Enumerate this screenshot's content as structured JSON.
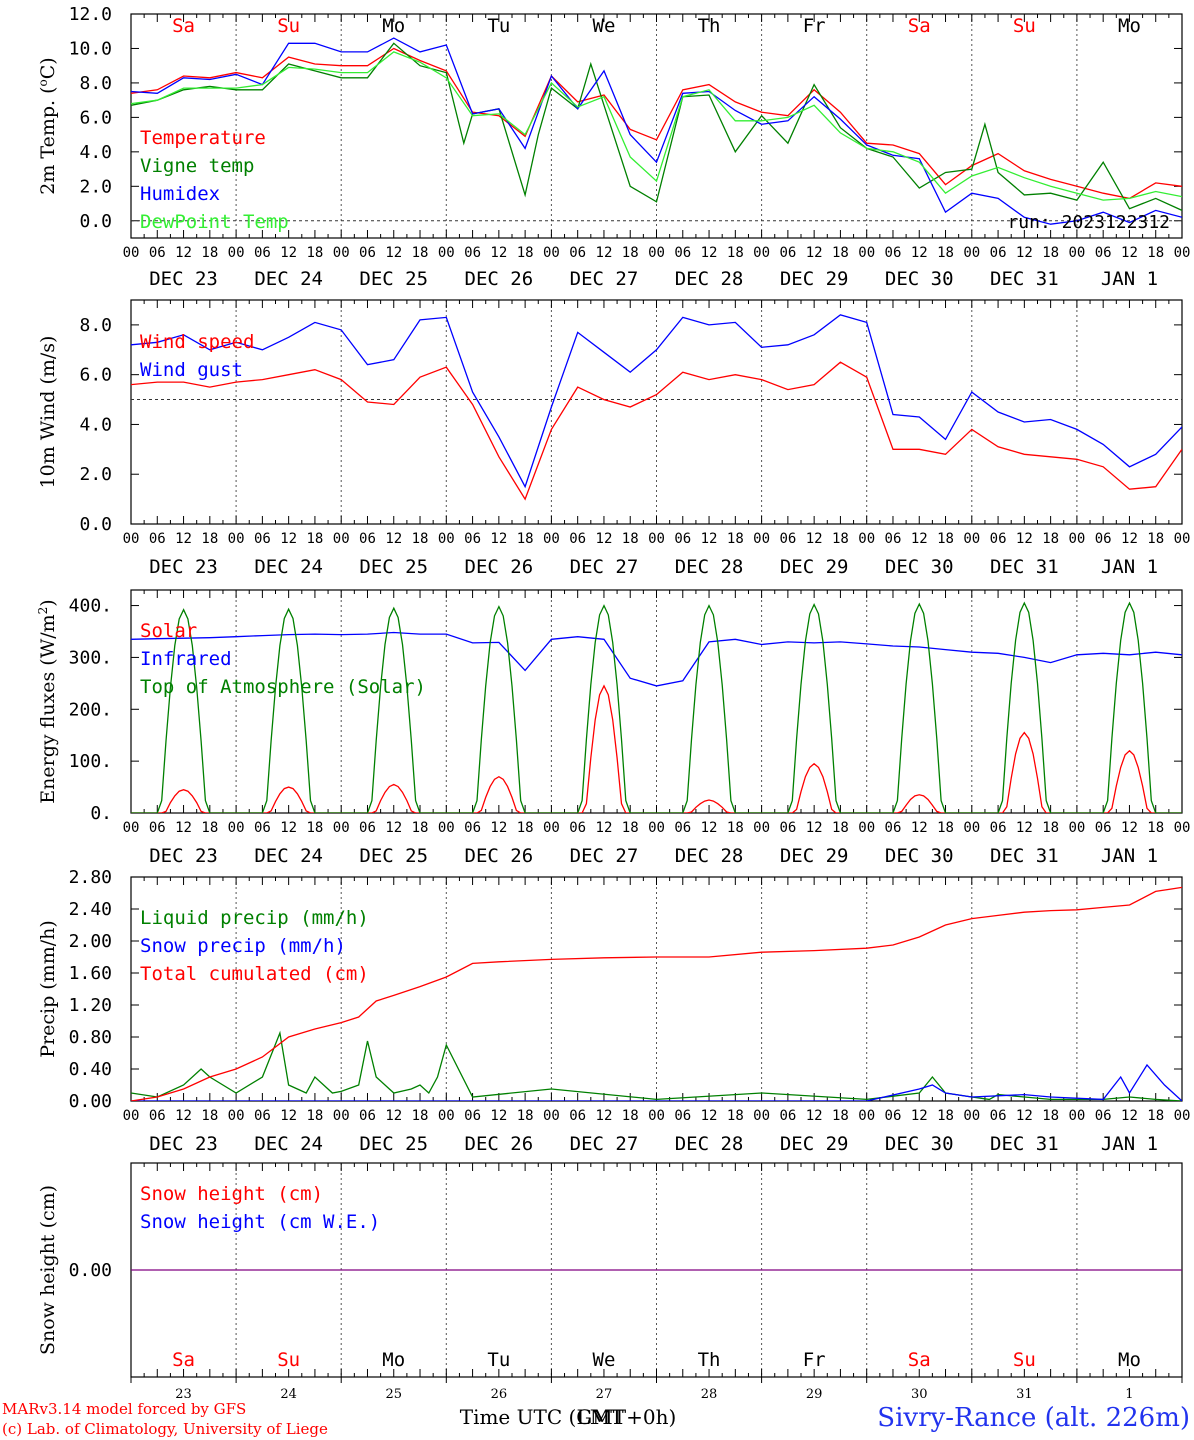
{
  "footer": {
    "model_line": "MARv3.14 model forced by GFS",
    "lab_line": "(c) Lab. of Climatology, University of Liege",
    "time_axis_title": "Time UTC (GMT+0h)",
    "time_axis_overlay": "LMT",
    "station": "Sivry-Rance (alt. 226m)"
  },
  "colors": {
    "red": "#ff0000",
    "green": "#008000",
    "blue": "#0000ff",
    "lightgreen": "#33ee33",
    "purple": "#800080"
  },
  "days": {
    "weekday_labels": [
      "Sa",
      "Su",
      "Mo",
      "Tu",
      "We",
      "Th",
      "Fr",
      "Sa",
      "Su",
      "Mo"
    ],
    "weekend_flags": [
      true,
      true,
      false,
      false,
      false,
      false,
      false,
      true,
      true,
      false
    ],
    "date_labels": [
      "DEC 23",
      "DEC 24",
      "DEC 25",
      "DEC 26",
      "DEC 27",
      "DEC 28",
      "DEC 29",
      "DEC 30",
      "DEC 31",
      "JAN  1"
    ],
    "day_numbers": [
      "23",
      "24",
      "25",
      "26",
      "27",
      "28",
      "29",
      "30",
      "31",
      "1"
    ],
    "hour_ticks": [
      "00",
      "06",
      "12",
      "18"
    ],
    "final_tick": "00"
  },
  "chart_data": [
    {
      "id": "temp",
      "type": "line",
      "ylabel": "2m Temp. (oC)",
      "ylim": [
        -1,
        12
      ],
      "yticks": [
        "0.0",
        "2.0",
        "4.0",
        "6.0",
        "8.0",
        "10.0",
        "12.0"
      ],
      "ytick_values": [
        0,
        2,
        4,
        6,
        8,
        10,
        12
      ],
      "hline": 0,
      "run_label": "run: 2023122312",
      "legend": [
        "Temperature",
        "Vigne temp",
        "Humidex",
        "DewPoint Temp"
      ],
      "x_unit": "hours since 2023-12-23 00 UTC",
      "series": [
        {
          "name": "Temperature",
          "color": "red",
          "x": [
            0,
            6,
            12,
            18,
            24,
            30,
            36,
            42,
            48,
            54,
            60,
            66,
            72,
            78,
            84,
            90,
            96,
            102,
            108,
            114,
            120,
            126,
            132,
            138,
            144,
            150,
            156,
            162,
            168,
            174,
            180,
            186,
            192,
            198,
            204,
            210,
            216,
            222,
            228,
            234,
            240
          ],
          "y": [
            7.4,
            7.6,
            8.4,
            8.3,
            8.6,
            8.3,
            9.5,
            9.1,
            9.0,
            9.0,
            10.0,
            9.3,
            8.7,
            6.3,
            6.1,
            4.9,
            8.4,
            6.9,
            7.3,
            5.3,
            4.7,
            7.6,
            7.9,
            6.9,
            6.3,
            6.1,
            7.6,
            6.3,
            4.5,
            4.4,
            3.9,
            2.1,
            3.2,
            3.9,
            2.9,
            2.4,
            2.0,
            1.6,
            1.3,
            2.2,
            2.0
          ]
        },
        {
          "name": "Vigne temp",
          "color": "green",
          "x": [
            0,
            6,
            12,
            18,
            24,
            30,
            36,
            42,
            48,
            54,
            60,
            66,
            72,
            76,
            78,
            84,
            90,
            93,
            96,
            102,
            105,
            108,
            114,
            120,
            126,
            132,
            138,
            144,
            150,
            156,
            162,
            168,
            174,
            180,
            186,
            192,
            195,
            198,
            204,
            210,
            216,
            222,
            228,
            234,
            240
          ],
          "y": [
            6.7,
            7.0,
            7.6,
            7.8,
            7.6,
            7.6,
            9.1,
            8.7,
            8.3,
            8.3,
            10.3,
            9.0,
            8.6,
            4.5,
            6.2,
            6.5,
            1.5,
            5.0,
            7.7,
            6.5,
            9.1,
            6.7,
            2.0,
            1.1,
            7.2,
            7.3,
            4.0,
            6.1,
            4.5,
            7.9,
            5.4,
            4.2,
            3.7,
            1.9,
            2.8,
            3.0,
            5.6,
            2.8,
            1.5,
            1.6,
            1.2,
            3.4,
            0.7,
            1.3,
            0.6
          ]
        },
        {
          "name": "Humidex",
          "color": "blue",
          "x": [
            0,
            6,
            12,
            18,
            24,
            30,
            36,
            42,
            48,
            54,
            60,
            66,
            72,
            78,
            84,
            90,
            96,
            102,
            108,
            114,
            120,
            126,
            132,
            138,
            144,
            150,
            156,
            162,
            168,
            174,
            180,
            186,
            192,
            198,
            204,
            210,
            216,
            222,
            228,
            234,
            240
          ],
          "y": [
            7.5,
            7.4,
            8.3,
            8.2,
            8.5,
            7.9,
            10.3,
            10.3,
            9.8,
            9.8,
            10.6,
            9.8,
            10.2,
            6.2,
            6.5,
            4.2,
            8.4,
            6.5,
            8.7,
            5.0,
            3.4,
            7.4,
            7.5,
            6.4,
            5.6,
            5.8,
            7.2,
            5.9,
            4.4,
            3.8,
            3.6,
            0.5,
            1.6,
            1.3,
            0.2,
            -0.2,
            0.0,
            0.5,
            -0.1,
            0.6,
            0.2
          ]
        },
        {
          "name": "DewPoint Temp",
          "color": "lightgreen",
          "x": [
            0,
            6,
            12,
            18,
            24,
            30,
            36,
            42,
            48,
            54,
            60,
            66,
            72,
            78,
            84,
            90,
            96,
            102,
            108,
            114,
            120,
            126,
            132,
            138,
            144,
            150,
            156,
            162,
            168,
            174,
            180,
            186,
            192,
            198,
            204,
            210,
            216,
            222,
            228,
            234,
            240
          ],
          "y": [
            6.8,
            7.0,
            7.7,
            7.7,
            7.7,
            7.9,
            8.9,
            8.8,
            8.6,
            8.6,
            9.8,
            9.2,
            8.3,
            6.1,
            6.2,
            5.0,
            8.0,
            6.6,
            7.2,
            3.7,
            2.3,
            7.2,
            7.6,
            5.8,
            5.8,
            6.0,
            6.7,
            5.1,
            4.2,
            4.0,
            3.4,
            1.6,
            2.6,
            3.1,
            2.5,
            2.0,
            1.6,
            1.2,
            1.3,
            1.7,
            1.4
          ]
        }
      ]
    },
    {
      "id": "wind",
      "type": "line",
      "ylabel": "10m Wind (m/s)",
      "ylim": [
        0,
        9
      ],
      "yticks": [
        "0.0",
        "2.0",
        "4.0",
        "6.0",
        "8.0"
      ],
      "ytick_values": [
        0,
        2,
        4,
        6,
        8
      ],
      "hline": 5,
      "legend": [
        "Wind speed",
        "Wind gust"
      ],
      "series": [
        {
          "name": "Wind speed",
          "color": "red",
          "x": [
            0,
            6,
            12,
            18,
            24,
            30,
            36,
            42,
            48,
            54,
            60,
            66,
            72,
            78,
            84,
            90,
            96,
            102,
            108,
            114,
            120,
            126,
            132,
            138,
            144,
            150,
            156,
            162,
            168,
            174,
            180,
            186,
            192,
            198,
            204,
            210,
            216,
            222,
            228,
            234,
            240
          ],
          "y": [
            5.6,
            5.7,
            5.7,
            5.5,
            5.7,
            5.8,
            6.0,
            6.2,
            5.8,
            4.9,
            4.8,
            5.9,
            6.3,
            4.8,
            2.7,
            1.0,
            3.8,
            5.5,
            5.0,
            4.7,
            5.2,
            6.1,
            5.8,
            6.0,
            5.8,
            5.4,
            5.6,
            6.5,
            5.9,
            3.0,
            3.0,
            2.8,
            3.8,
            3.1,
            2.8,
            2.7,
            2.6,
            2.3,
            1.4,
            1.5,
            3.0
          ]
        },
        {
          "name": "Wind gust",
          "color": "blue",
          "x": [
            0,
            6,
            12,
            18,
            24,
            30,
            36,
            42,
            48,
            54,
            60,
            66,
            72,
            78,
            84,
            90,
            96,
            102,
            108,
            114,
            120,
            126,
            132,
            138,
            144,
            150,
            156,
            162,
            168,
            174,
            180,
            186,
            192,
            198,
            204,
            210,
            216,
            222,
            228,
            234,
            240
          ],
          "y": [
            7.2,
            7.3,
            7.6,
            7.0,
            7.3,
            7.0,
            7.5,
            8.1,
            7.8,
            6.4,
            6.6,
            8.2,
            8.3,
            5.3,
            3.5,
            1.5,
            4.7,
            7.7,
            6.9,
            6.1,
            7.0,
            8.3,
            8.0,
            8.1,
            7.1,
            7.2,
            7.6,
            8.4,
            8.1,
            4.4,
            4.3,
            3.4,
            5.3,
            4.5,
            4.1,
            4.2,
            3.8,
            3.2,
            2.3,
            2.8,
            3.9
          ]
        }
      ]
    },
    {
      "id": "flux",
      "type": "line",
      "ylabel": "Energy fluxes (W/m2)",
      "ylim": [
        0,
        430
      ],
      "yticks": [
        "0.",
        "100.",
        "200.",
        "300.",
        "400."
      ],
      "ytick_values": [
        0,
        100,
        200,
        300,
        400
      ],
      "legend": [
        "Solar",
        "Infrared",
        "Top of Atmosphere (Solar)"
      ],
      "series": [
        {
          "name": "Solar",
          "color": "red",
          "peaks": [
            45,
            50,
            55,
            70,
            245,
            25,
            95,
            35,
            155,
            120
          ]
        },
        {
          "name": "Infrared",
          "color": "blue",
          "x": [
            0,
            6,
            12,
            18,
            24,
            30,
            36,
            42,
            48,
            54,
            60,
            66,
            72,
            78,
            84,
            90,
            96,
            102,
            108,
            114,
            120,
            126,
            132,
            138,
            144,
            150,
            156,
            162,
            168,
            174,
            180,
            186,
            192,
            198,
            204,
            210,
            216,
            222,
            228,
            234,
            240
          ],
          "y": [
            335,
            336,
            337,
            338,
            340,
            342,
            344,
            345,
            344,
            345,
            348,
            345,
            345,
            328,
            329,
            275,
            335,
            340,
            335,
            260,
            245,
            255,
            330,
            335,
            325,
            330,
            328,
            330,
            326,
            322,
            320,
            315,
            310,
            308,
            300,
            290,
            305,
            308,
            305,
            310,
            305
          ]
        },
        {
          "name": "Top of Atmosphere (Solar)",
          "color": "green",
          "peaks": [
            392,
            393,
            395,
            398,
            400,
            400,
            402,
            403,
            405,
            405
          ]
        }
      ]
    },
    {
      "id": "precip",
      "type": "line",
      "ylabel": "Precip (mm/h)",
      "ylim": [
        0,
        2.8
      ],
      "yticks": [
        "0.00",
        "0.40",
        "0.80",
        "1.20",
        "1.60",
        "2.00",
        "2.40",
        "2.80"
      ],
      "ytick_values": [
        0,
        0.4,
        0.8,
        1.2,
        1.6,
        2.0,
        2.4,
        2.8
      ],
      "legend": [
        "Liquid precip (mm/h)",
        "Snow precip (mm/h)",
        "Total cumulated (cm)"
      ],
      "series": [
        {
          "name": "Liquid precip (mm/h)",
          "color": "green",
          "x": [
            0,
            6,
            12,
            16,
            18,
            24,
            30,
            34,
            36,
            40,
            42,
            46,
            48,
            52,
            54,
            56,
            60,
            64,
            66,
            68,
            70,
            72,
            78,
            96,
            120,
            144,
            168,
            180,
            183,
            186,
            192,
            196,
            198,
            210,
            222,
            228,
            234,
            240
          ],
          "y": [
            0.1,
            0.05,
            0.2,
            0.4,
            0.3,
            0.1,
            0.3,
            0.85,
            0.2,
            0.1,
            0.3,
            0.1,
            0.12,
            0.2,
            0.75,
            0.3,
            0.1,
            0.15,
            0.2,
            0.1,
            0.3,
            0.7,
            0.05,
            0.15,
            0.02,
            0.1,
            0.02,
            0.1,
            0.3,
            0.1,
            0.05,
            0.02,
            0.08,
            0.02,
            0.02,
            0.05,
            0.02,
            0.0
          ]
        },
        {
          "name": "Snow precip (mm/h)",
          "color": "blue",
          "x": [
            0,
            168,
            180,
            183,
            186,
            192,
            204,
            210,
            222,
            226,
            228,
            232,
            236,
            240
          ],
          "y": [
            0,
            0,
            0.15,
            0.2,
            0.1,
            0.05,
            0.08,
            0.05,
            0.02,
            0.3,
            0.1,
            0.45,
            0.2,
            0.0
          ]
        },
        {
          "name": "Total cumulated (cm)",
          "color": "red",
          "x": [
            0,
            6,
            12,
            18,
            24,
            30,
            36,
            42,
            48,
            52,
            56,
            60,
            66,
            72,
            78,
            84,
            96,
            108,
            120,
            132,
            144,
            156,
            168,
            174,
            180,
            186,
            192,
            198,
            204,
            210,
            216,
            222,
            228,
            234,
            240
          ],
          "y": [
            0.0,
            0.05,
            0.15,
            0.3,
            0.4,
            0.55,
            0.8,
            0.9,
            0.98,
            1.05,
            1.25,
            1.32,
            1.43,
            1.55,
            1.72,
            1.74,
            1.77,
            1.79,
            1.8,
            1.8,
            1.86,
            1.88,
            1.91,
            1.95,
            2.05,
            2.2,
            2.28,
            2.32,
            2.36,
            2.38,
            2.39,
            2.42,
            2.45,
            2.62,
            2.67
          ]
        }
      ]
    },
    {
      "id": "snow",
      "type": "line",
      "ylabel": "Snow height (cm)",
      "ylim": [
        -1,
        1
      ],
      "yticks": [
        "0.00"
      ],
      "ytick_values": [
        0
      ],
      "legend": [
        "Snow height (cm)",
        "Snow height (cm W.E.)"
      ],
      "series": [
        {
          "name": "Snow height (cm)",
          "color": "purple",
          "x": [
            0,
            240
          ],
          "y": [
            0,
            0
          ]
        }
      ]
    }
  ]
}
